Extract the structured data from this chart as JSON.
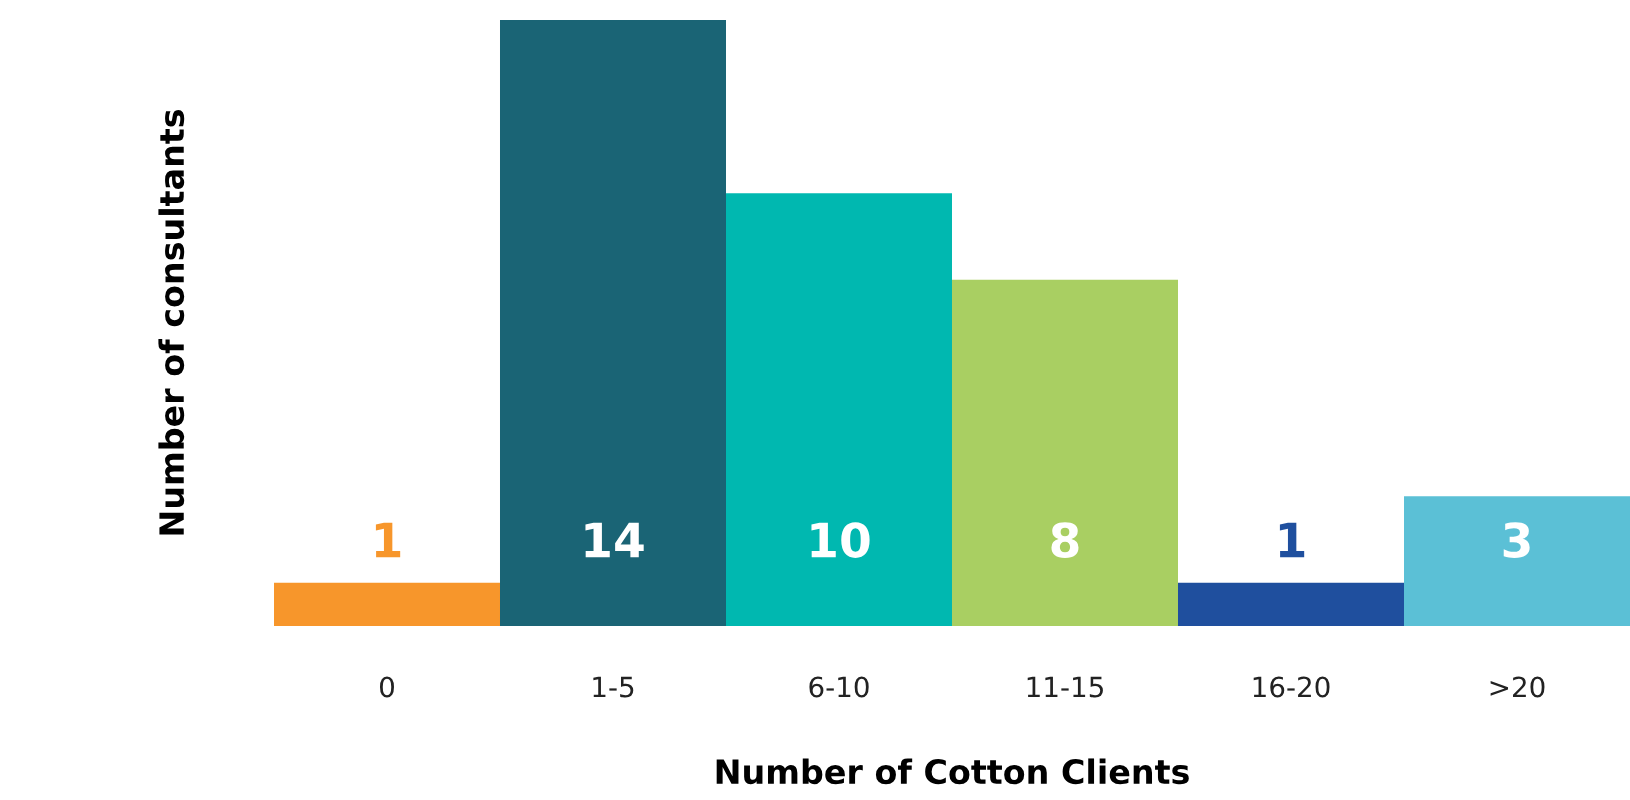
{
  "chart_data": {
    "type": "bar",
    "xlabel": "Number of Cotton Clients",
    "ylabel": "Number of consultants",
    "categories": [
      "0",
      "1-5",
      "6-10",
      "11-15",
      "16-20",
      ">20"
    ],
    "values": [
      1,
      14,
      10,
      8,
      1,
      3
    ],
    "colors": [
      "#f7962b",
      "#1a6475",
      "#00b8b0",
      "#a9cf62",
      "#1f4f9e",
      "#5bc0d6"
    ],
    "ylim": [
      0,
      14
    ],
    "tick_labels": "x",
    "data_labels": true,
    "grid": false,
    "legend": false
  }
}
